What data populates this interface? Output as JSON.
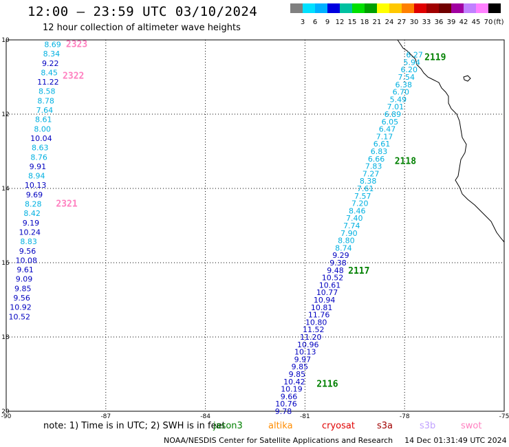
{
  "header": {
    "title": "12:00 — 23:59 UTC 03/10/2024",
    "subtitle": "12 hour collection of altimeter wave heights"
  },
  "colorbar": {
    "colors": [
      "#808080",
      "#00e0ff",
      "#00b0ff",
      "#0000e0",
      "#00c0a0",
      "#00e000",
      "#00a000",
      "#ffff00",
      "#ffc800",
      "#ff8000",
      "#e00000",
      "#a00000",
      "#700000",
      "#a000a0",
      "#c080ff",
      "#ff80ff",
      "#000000"
    ],
    "labels": [
      "3",
      "6",
      "9",
      "12",
      "15",
      "18",
      "21",
      "24",
      "27",
      "30",
      "33",
      "36",
      "39",
      "42",
      "45",
      "70"
    ],
    "unit": "(ft)"
  },
  "axes": {
    "lon_labels": [
      "-90",
      "-87",
      "-84",
      "-81",
      "-78",
      "-75"
    ],
    "lat_labels": [
      "10",
      "12",
      "14",
      "16",
      "18",
      "20"
    ]
  },
  "passes": [
    {
      "id": "2323",
      "color": "#ff80c0",
      "lon": -88.2,
      "lat": 10.1
    },
    {
      "id": "2322",
      "color": "#ff80c0",
      "lon": -88.3,
      "lat": 10.95
    },
    {
      "id": "2321",
      "color": "#ff80c0",
      "lon": -88.5,
      "lat": 14.4
    },
    {
      "id": "2119",
      "color": "#008000",
      "lon": -77.4,
      "lat": 10.45
    },
    {
      "id": "2118",
      "color": "#008000",
      "lon": -78.3,
      "lat": 13.25
    },
    {
      "id": "2117",
      "color": "#008000",
      "lon": -79.7,
      "lat": 16.2
    },
    {
      "id": "2116",
      "color": "#008000",
      "lon": -80.65,
      "lat": 19.25
    }
  ],
  "tracks": [
    {
      "name": "track-2323-2321",
      "start": {
        "lon": -88.6,
        "lat": 10.12
      },
      "end": {
        "lon": -89.6,
        "lat": 17.45
      },
      "values": [
        "8.69",
        "8.34",
        "9.22",
        "8.45",
        "11.22",
        "8.58",
        "8.78",
        "7.64",
        "8.61",
        "8.00",
        "10.04",
        "8.63",
        "8.76",
        "9.91",
        "8.94",
        "10.13",
        "9.69",
        "8.28",
        "8.42",
        "9.19",
        "10.24",
        "8.83",
        "9.56",
        "10.08",
        "9.61",
        "9.09",
        "9.85",
        "9.56",
        "10.92",
        "10.52"
      ]
    },
    {
      "name": "track-2119-2116",
      "start": {
        "lon": -77.7,
        "lat": 10.4
      },
      "end": {
        "lon": -81.65,
        "lat": 20.0
      },
      "values": [
        "6.27",
        "5.94",
        "6.20",
        "7.54",
        "6.38",
        "6.70",
        "5.49",
        "7.01",
        "6.89",
        "6.05",
        "6.47",
        "7.17",
        "6.61",
        "6.83",
        "6.66",
        "7.83",
        "7.27",
        "8.38",
        "7.61",
        "7.57",
        "7.20",
        "8.46",
        "7.40",
        "7.74",
        "7.90",
        "8.80",
        "8.74",
        "9.29",
        "9.38",
        "9.48",
        "10.52",
        "10.61",
        "10.77",
        "10.94",
        "10.81",
        "11.76",
        "10.80",
        "11.52",
        "11.20",
        "10.96",
        "10.13",
        "9.97",
        "9.85",
        "9.85",
        "10.42",
        "10.19",
        "9.66",
        "10.76",
        "9.78"
      ]
    }
  ],
  "note": {
    "text": "note: 1) Time is in UTC; 2) SWH is in feet",
    "legend": [
      {
        "label": "jason3",
        "color": "#008000"
      },
      {
        "label": "altika",
        "color": "#ff8c00"
      },
      {
        "label": "cryosat",
        "color": "#e00000"
      },
      {
        "label": "s3a",
        "color": "#a00000"
      },
      {
        "label": "s3b",
        "color": "#c0a0ff"
      },
      {
        "label": "swot",
        "color": "#ff80c0"
      }
    ]
  },
  "footer": {
    "credit": "NOAA/NESDIS Center for Satellite Applications and Research",
    "timestamp": "14 Dec 01:31:49 UTC 2024"
  }
}
